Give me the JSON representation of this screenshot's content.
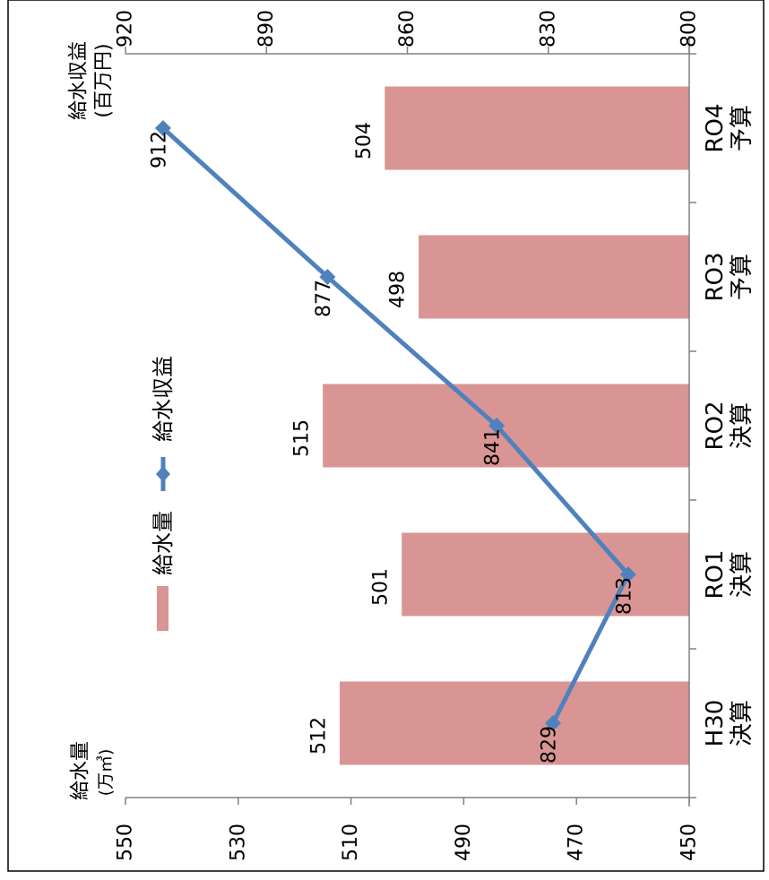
{
  "chart_data": {
    "type": "bar+line",
    "orientation": "rotated-90-clockwise",
    "categories": [
      {
        "line1": "H30",
        "line2": "決算"
      },
      {
        "line1": "RO1",
        "line2": "決算"
      },
      {
        "line1": "RO2",
        "line2": "決算"
      },
      {
        "line1": "RO3",
        "line2": "予算"
      },
      {
        "line1": "RO4",
        "line2": "予算"
      }
    ],
    "series": [
      {
        "name": "給水量",
        "type": "bar",
        "axis": "primary",
        "color": "#d99594",
        "values": [
          512,
          501,
          515,
          498,
          504
        ],
        "labels": [
          "512",
          "501",
          "515",
          "498",
          "504"
        ]
      },
      {
        "name": "給水収益",
        "type": "line",
        "axis": "secondary",
        "color": "#4f81bd",
        "marker": "diamond",
        "values": [
          829,
          813,
          841,
          877,
          912
        ],
        "labels": [
          "829",
          "813",
          "841",
          "877",
          "912"
        ]
      }
    ],
    "primary_axis": {
      "title_line1": "給水量",
      "title_line2": "(万㎥)",
      "min": 450,
      "max": 550,
      "ticks": [
        450,
        470,
        490,
        510,
        530,
        550
      ],
      "tick_labels": [
        "450",
        "470",
        "490",
        "510",
        "530",
        "550"
      ]
    },
    "secondary_axis": {
      "title_line1": "給水収益",
      "title_line2": "(百万円)",
      "min": 800,
      "max": 920,
      "ticks": [
        800,
        830,
        860,
        890,
        920
      ],
      "tick_labels": [
        "800",
        "830",
        "860",
        "890",
        "920"
      ]
    },
    "legend": {
      "placement": "top",
      "items": [
        {
          "label": "給水量",
          "kind": "bar"
        },
        {
          "label": "給水収益",
          "kind": "line"
        }
      ]
    },
    "grid": false
  }
}
